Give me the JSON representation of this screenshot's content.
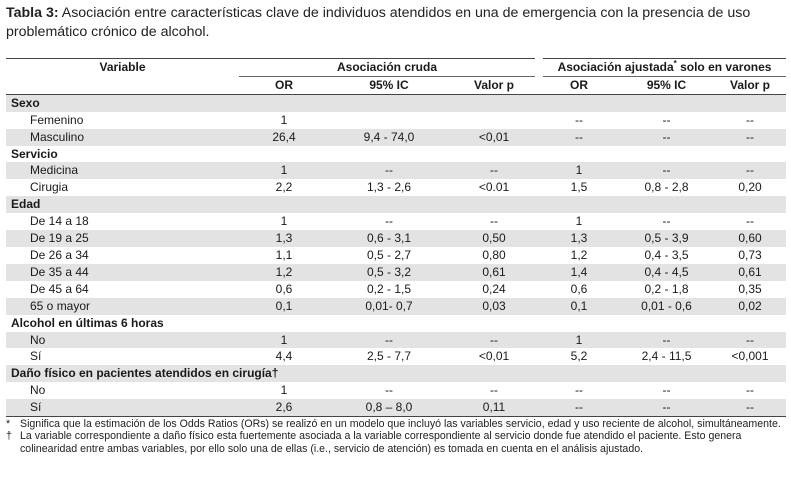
{
  "caption": {
    "label": "Tabla 3:",
    "text": "Asociación entre características clave de individuos atendidos en una de emergencia con la presencia de uso problemático crónico de alcohol."
  },
  "table": {
    "headers": {
      "variable": "Variable",
      "group_crude": "Asociación cruda",
      "group_adjusted": "Asociación ajustada",
      "group_adjusted_mark": "*",
      "group_adjusted_suffix": " solo en varones",
      "sub": [
        "OR",
        "95% IC",
        "Valor p",
        "OR",
        "95% IC",
        "Valor p"
      ]
    },
    "sections": [
      {
        "title": "Sexo",
        "rows": [
          {
            "label": "Femenino",
            "values": [
              "1",
              "",
              "",
              "--",
              "--",
              "--"
            ]
          },
          {
            "label": "Masculino",
            "values": [
              "26,4",
              "9,4 - 74,0",
              "<0,01",
              "--",
              "--",
              "--"
            ]
          }
        ]
      },
      {
        "title": "Servicio",
        "rows": [
          {
            "label": "Medicina",
            "values": [
              "1",
              "--",
              "--",
              "1",
              "--",
              "--"
            ]
          },
          {
            "label": "Cirugia",
            "values": [
              "2,2",
              "1,3 - 2,6",
              "<0.01",
              "1,5",
              "0,8 - 2,8",
              "0,20"
            ]
          }
        ]
      },
      {
        "title": "Edad",
        "rows": [
          {
            "label": "De 14 a 18",
            "values": [
              "1",
              "--",
              "--",
              "1",
              "--",
              "--"
            ]
          },
          {
            "label": "De 19 a 25",
            "values": [
              "1,3",
              "0,6 - 3,1",
              "0,50",
              "1,3",
              "0,5 - 3,9",
              "0,60"
            ]
          },
          {
            "label": "De 26 a 34",
            "values": [
              "1,1",
              "0,5 - 2,7",
              "0,80",
              "1,2",
              "0,4 - 3,5",
              "0,73"
            ]
          },
          {
            "label": "De 35 a 44",
            "values": [
              "1,2",
              "0,5 - 3,2",
              "0,61",
              "1,4",
              "0,4 - 4,5",
              "0,61"
            ]
          },
          {
            "label": "De 45 a 64",
            "values": [
              "0,6",
              "0,2 - 1,5",
              "0,24",
              "0,6",
              "0,2 - 1,8",
              "0,35"
            ]
          },
          {
            "label": "65 o mayor",
            "values": [
              "0,1",
              "0,01- 0,7",
              "0,03",
              "0,1",
              "0,01 - 0,6",
              "0,02"
            ]
          }
        ]
      },
      {
        "title": "Alcohol en últimas 6 horas",
        "rows": [
          {
            "label": "No",
            "values": [
              "1",
              "--",
              "--",
              "1",
              "--",
              "--"
            ]
          },
          {
            "label": "Sí",
            "values": [
              "4,4",
              "2,5 - 7,7",
              "<0,01",
              "5,2",
              "2,4 - 11,5",
              "<0,001"
            ]
          }
        ]
      },
      {
        "title": "Daño físico en pacientes atendidos en  cirugía†",
        "rows": [
          {
            "label": "No",
            "values": [
              "1",
              "--",
              "--",
              "--",
              "--",
              "--"
            ]
          },
          {
            "label": "Sí",
            "values": [
              "2,6",
              "0,8 – 8,0",
              "0,11",
              "--",
              "--",
              "--"
            ]
          }
        ]
      }
    ]
  },
  "footnotes": [
    {
      "mark": "*",
      "text": "Significa que la estimación de los Odds Ratios (ORs) se realizó en un modelo que incluyó las variables servicio, edad y uso reciente de alcohol, simultáneamente."
    },
    {
      "mark": "†",
      "text": "La variable correspondiente a daño físico esta fuertemente asociada a la variable correspondiente al servicio donde fue atendido el paciente. Esto genera colinearidad entre ambas variables, por ello solo una de ellas (i.e., servicio de atención) es tomada en cuenta en el análisis ajustado."
    }
  ]
}
